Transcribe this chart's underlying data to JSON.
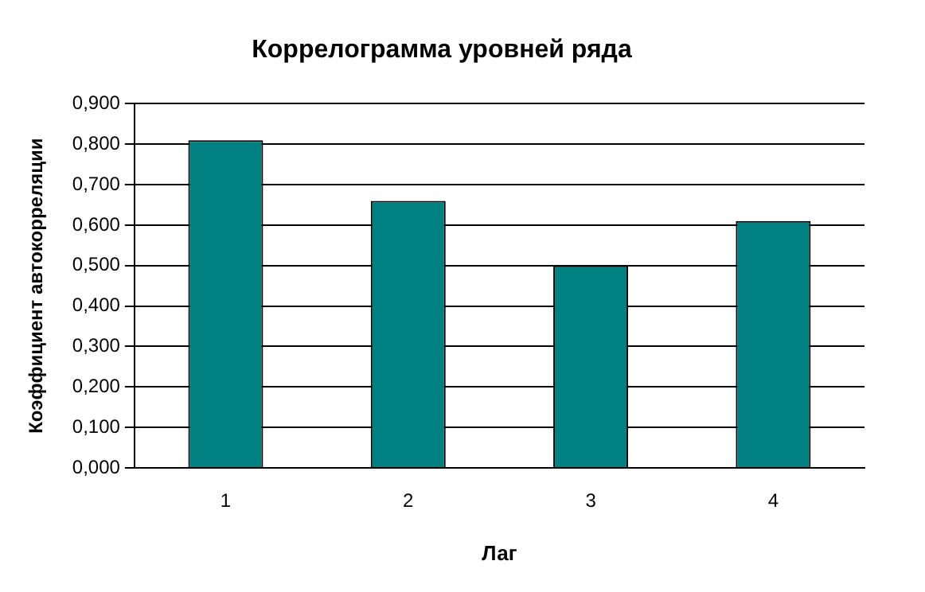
{
  "chart_data": {
    "type": "bar",
    "title": "Коррелограмма уровней ряда",
    "xlabel": "Лаг",
    "ylabel": "Коэффициент автокорреляции",
    "categories": [
      "1",
      "2",
      "3",
      "4"
    ],
    "values": [
      0.81,
      0.66,
      0.5,
      0.61
    ],
    "color": "#008080",
    "ylim": [
      0,
      0.9
    ],
    "yticks": [
      {
        "value": 0,
        "label": "0,000"
      },
      {
        "value": 0.1,
        "label": "0,100"
      },
      {
        "value": 0.2,
        "label": "0,200"
      },
      {
        "value": 0.3,
        "label": "0,300"
      },
      {
        "value": 0.4,
        "label": "0,400"
      },
      {
        "value": 0.5,
        "label": "0,500"
      },
      {
        "value": 0.6,
        "label": "0,600"
      },
      {
        "value": 0.7,
        "label": "0,700"
      },
      {
        "value": 0.8,
        "label": "0,800"
      },
      {
        "value": 0.9,
        "label": "0,900"
      }
    ],
    "grid": "y",
    "legend": false
  }
}
